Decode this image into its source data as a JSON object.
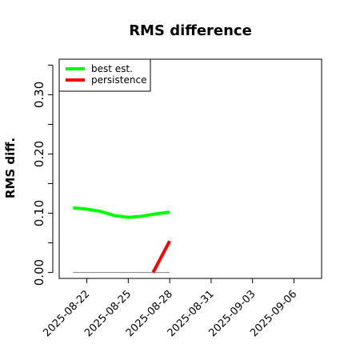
{
  "chart_data": {
    "type": "line",
    "title": "RMS difference",
    "xlabel": "",
    "ylabel": "RMS diff.",
    "y_ticks": [
      "0.00",
      "0.10",
      "0.20",
      "0.30"
    ],
    "y_tick_values": [
      0.0,
      0.05,
      0.1,
      0.15,
      0.2,
      0.25,
      0.3,
      0.35
    ],
    "ylim": [
      -0.01,
      0.36
    ],
    "x_ticks": [
      "2025-08-22",
      "2025-08-25",
      "2025-08-28",
      "2025-08-31",
      "2025-09-03",
      "2025-09-06"
    ],
    "xlim": [
      "2025-08-20",
      "2025-09-08"
    ],
    "grid": false,
    "legend_position": "top-left",
    "series": [
      {
        "name": "best est.",
        "color": "#00ff00",
        "x": [
          "2025-08-21",
          "2025-08-22",
          "2025-08-23",
          "2025-08-24",
          "2025-08-25",
          "2025-08-26",
          "2025-08-27",
          "2025-08-28"
        ],
        "y": [
          0.109,
          0.107,
          0.103,
          0.096,
          0.093,
          0.095,
          0.099,
          0.102
        ]
      },
      {
        "name": "persistence",
        "color": "#ff0000",
        "x": [
          "2025-08-26.8",
          "2025-08-28"
        ],
        "y": [
          0.0,
          0.053
        ]
      }
    ],
    "reference_line": {
      "color": "#808080",
      "x": [
        "2025-08-21",
        "2025-08-28"
      ],
      "y": [
        0.0,
        0.0
      ]
    }
  }
}
